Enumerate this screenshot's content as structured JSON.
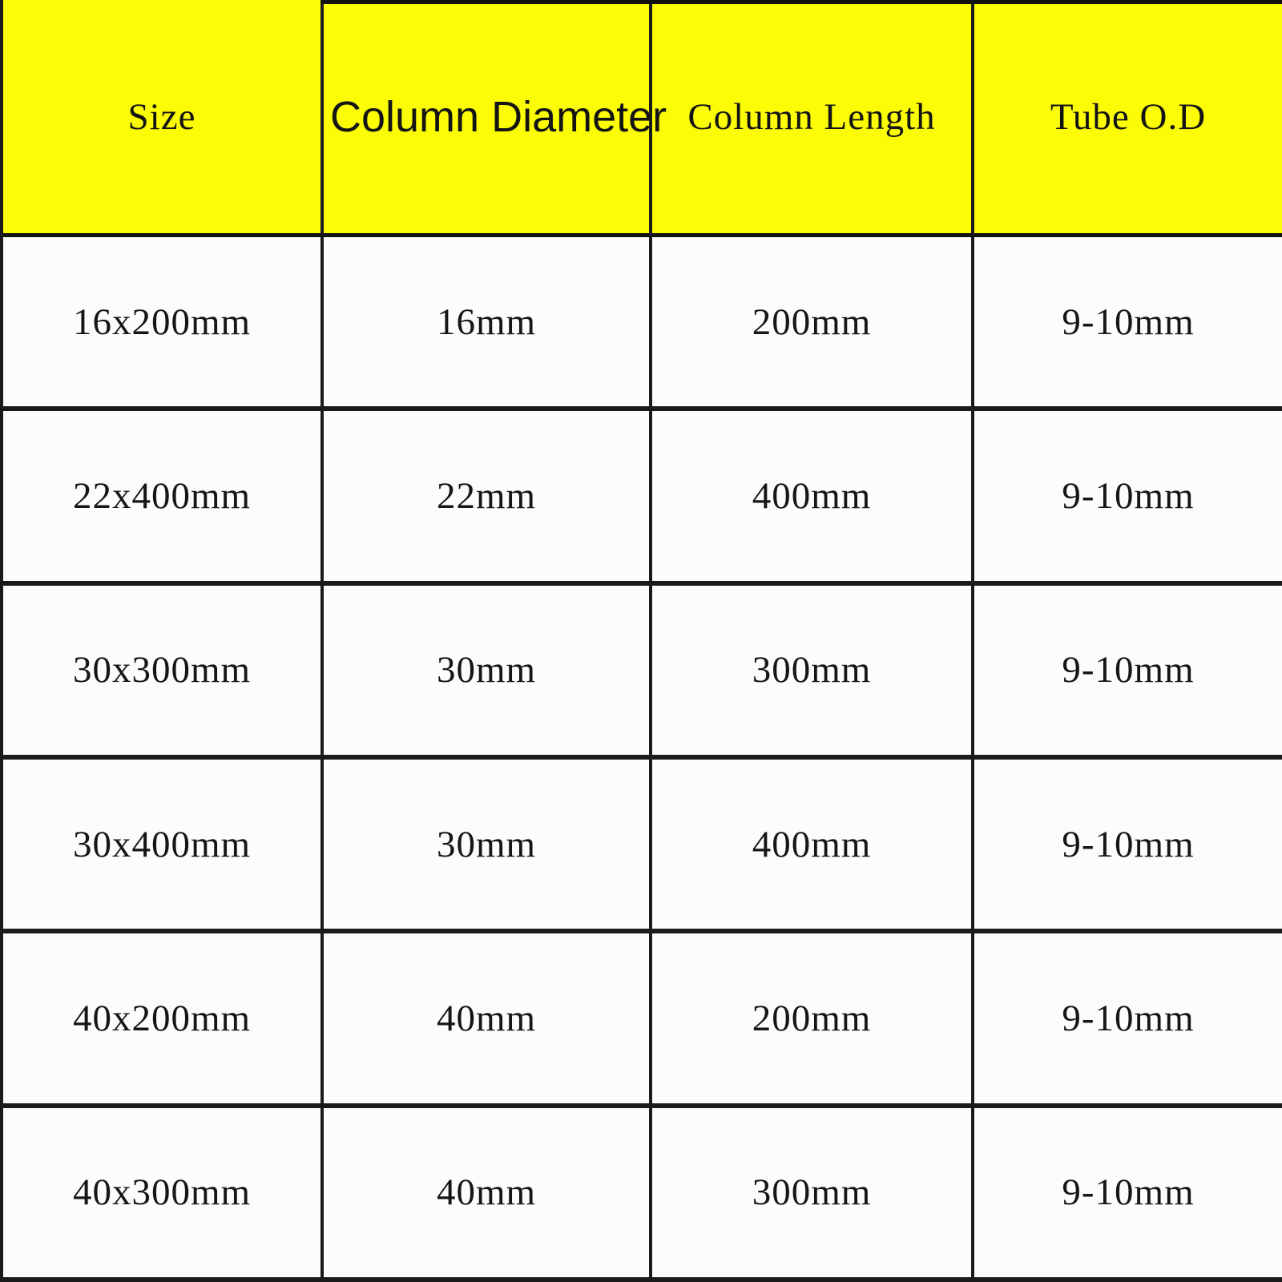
{
  "table": {
    "headers": [
      {
        "label": "Size"
      },
      {
        "label": "Column Diameter"
      },
      {
        "label": "Column Length"
      },
      {
        "label": "Tube O.D"
      }
    ],
    "rows": [
      [
        "16x200mm",
        "16mm",
        "200mm",
        "9-10mm"
      ],
      [
        "22x400mm",
        "22mm",
        "400mm",
        "9-10mm"
      ],
      [
        "30x300mm",
        "30mm",
        "300mm",
        "9-10mm"
      ],
      [
        "30x400mm",
        "30mm",
        "400mm",
        "9-10mm"
      ],
      [
        "40x200mm",
        "40mm",
        "200mm",
        "9-10mm"
      ],
      [
        "40x300mm",
        "40mm",
        "300mm",
        "9-10mm"
      ]
    ]
  },
  "colors": {
    "header_background": "#FCFC06",
    "cell_background": "#FCFCFC",
    "grid_border": "#1B1B1B",
    "text": "#141414"
  }
}
